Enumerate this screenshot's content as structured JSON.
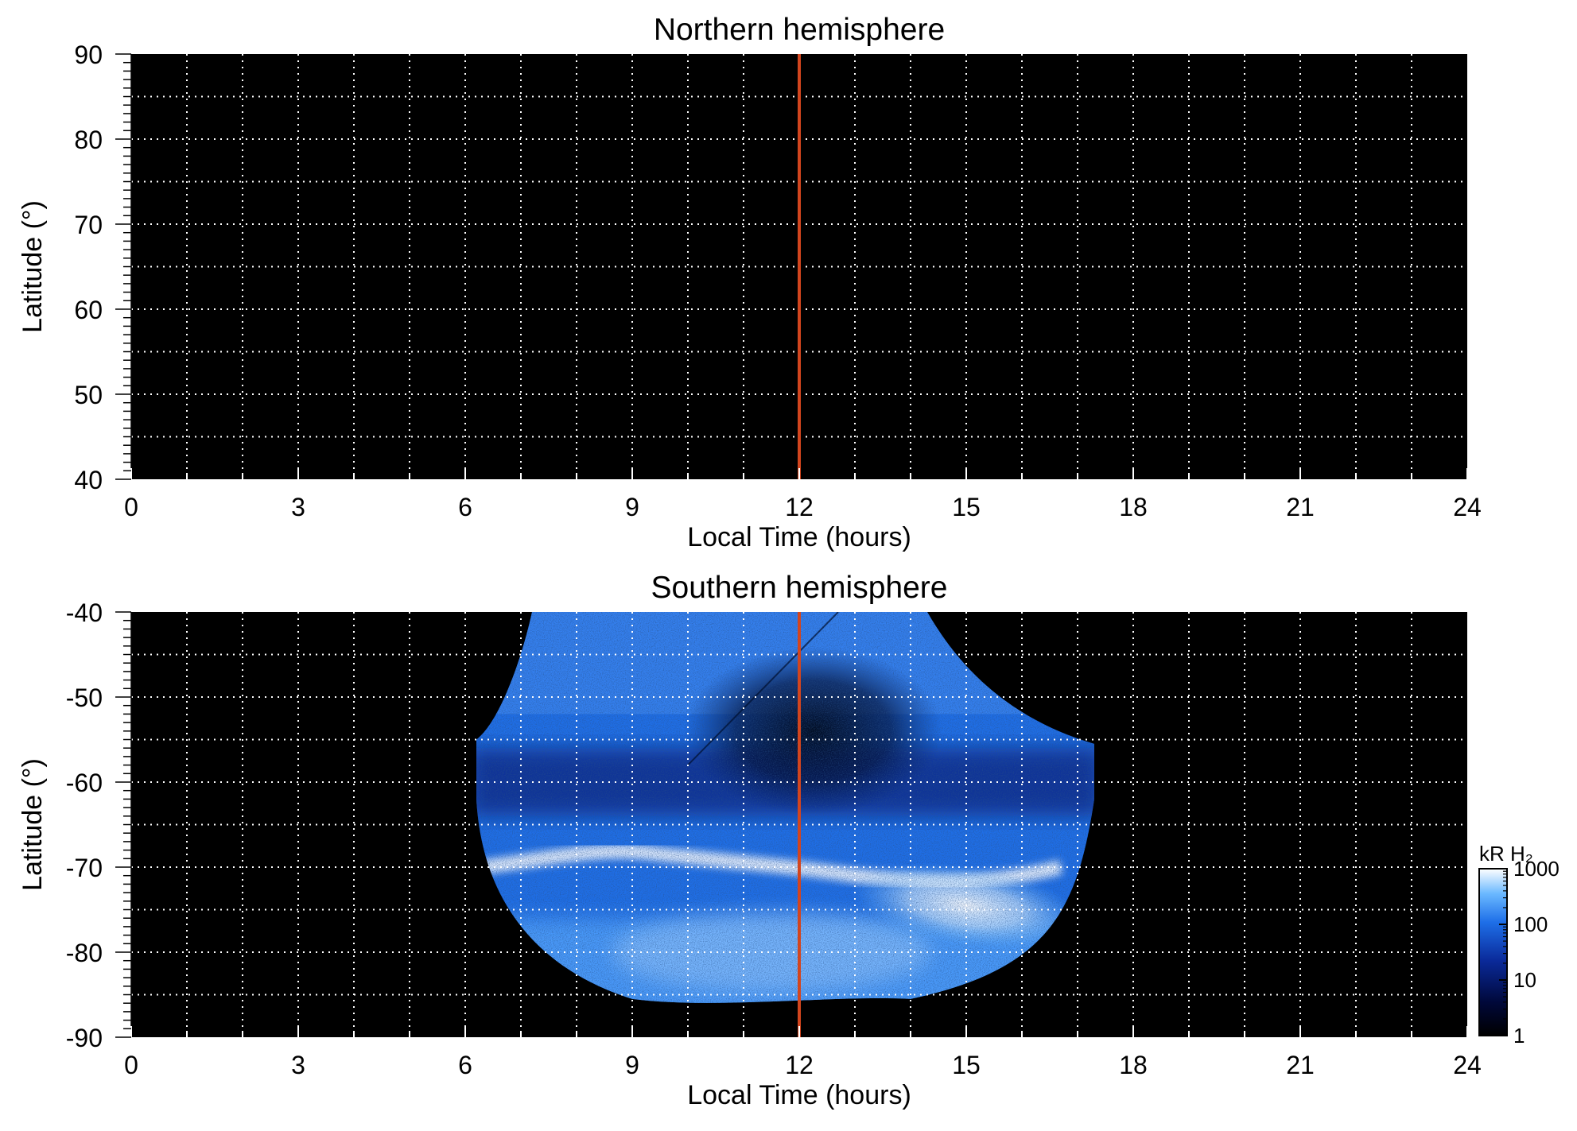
{
  "chart_data": [
    {
      "type": "heatmap",
      "title": "Northern hemisphere",
      "xlabel": "Local Time (hours)",
      "ylabel": "Latitude (°)",
      "xlim": [
        0,
        24
      ],
      "ylim": [
        40,
        90
      ],
      "x_ticks": [
        0,
        3,
        6,
        9,
        12,
        15,
        18,
        21,
        24
      ],
      "y_ticks": [
        40,
        50,
        60,
        70,
        80,
        90
      ],
      "grid": true,
      "grid_x_step": 1,
      "grid_y_step": 5,
      "reference_line": {
        "x": 12,
        "color": "#d2451e"
      },
      "background": "#000000",
      "coverage": "none"
    },
    {
      "type": "heatmap",
      "title": "Southern hemisphere",
      "xlabel": "Local Time (hours)",
      "ylabel": "Latitude (°)",
      "xlim": [
        0,
        24
      ],
      "ylim": [
        -90,
        -40
      ],
      "x_ticks": [
        0,
        3,
        6,
        9,
        12,
        15,
        18,
        21,
        24
      ],
      "y_ticks": [
        -40,
        -50,
        -60,
        -70,
        -80,
        -90
      ],
      "grid": true,
      "grid_x_step": 1,
      "grid_y_step": 5,
      "reference_line": {
        "x": 12,
        "color": "#d2451e"
      },
      "background": "#000000",
      "coverage": {
        "local_time_range": [
          6.2,
          17.3
        ],
        "latitude_range": [
          -86,
          -40
        ],
        "auroral_oval_latitude": [
          -68,
          -78
        ],
        "brightest_local_time": [
          13.5,
          16.5
        ],
        "dark_region": {
          "local_time": [
            10.5,
            14
          ],
          "latitude": [
            -46,
            -62
          ]
        }
      },
      "colorbar": {
        "label": "kR H₂",
        "scale": "log",
        "range": [
          1,
          1000
        ],
        "ticks": [
          "1",
          "10",
          "100",
          "1000"
        ],
        "colors": [
          "#000000",
          "#00083a",
          "#0a2a9a",
          "#1e6fe8",
          "#6ab8ff",
          "#ffffff"
        ]
      }
    }
  ]
}
